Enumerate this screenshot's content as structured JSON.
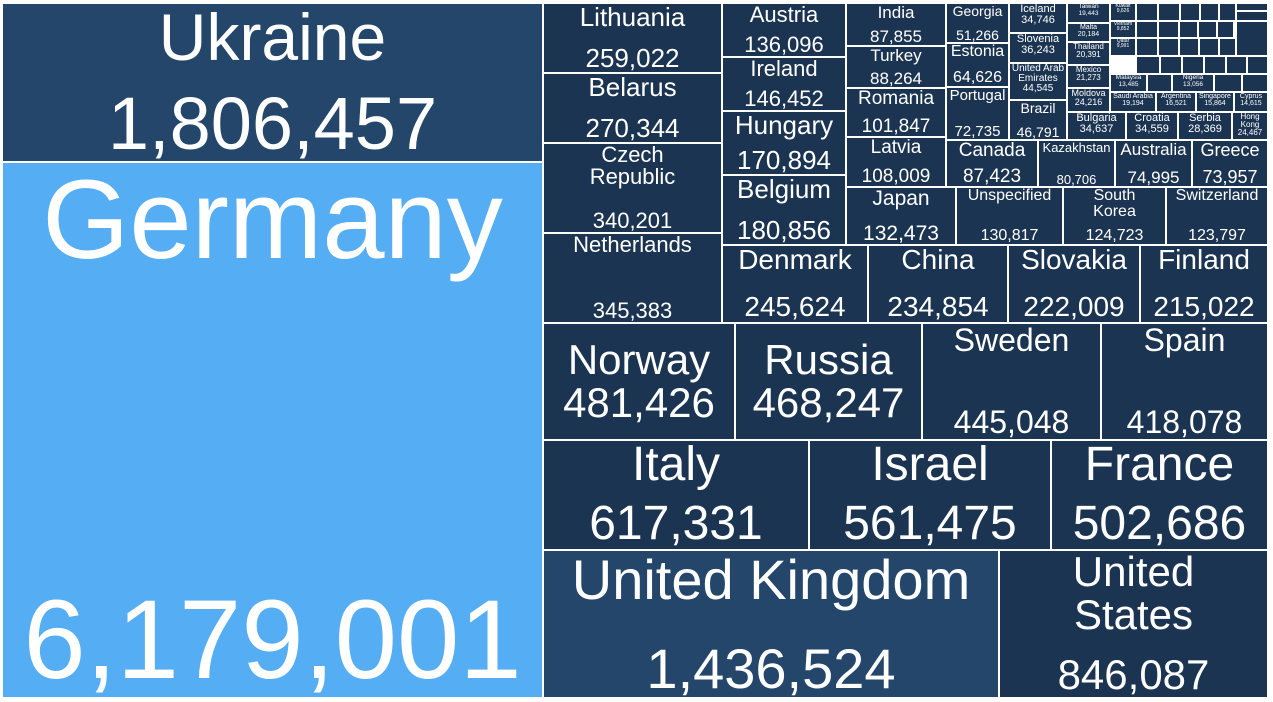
{
  "chart_data": {
    "type": "treemap",
    "colors": {
      "default": "#1b3451",
      "medium": "#24466a",
      "highlight": "#55adf4",
      "border": "#ffffff",
      "label": "#ffffff"
    },
    "items": [
      {
        "name": "Germany",
        "value": "6,179,001"
      },
      {
        "name": "Ukraine",
        "value": "1,806,457"
      },
      {
        "name": "United Kingdom",
        "value": "1,436,524"
      },
      {
        "name": "United States",
        "value": "846,087"
      },
      {
        "name": "Italy",
        "value": "617,331"
      },
      {
        "name": "Israel",
        "value": "561,475"
      },
      {
        "name": "France",
        "value": "502,686"
      },
      {
        "name": "Norway",
        "value": "481,426"
      },
      {
        "name": "Russia",
        "value": "468,247"
      },
      {
        "name": "Sweden",
        "value": "445,048"
      },
      {
        "name": "Spain",
        "value": "418,078"
      },
      {
        "name": "Netherlands",
        "value": "345,383"
      },
      {
        "name": "Czech Republic",
        "value": "340,201"
      },
      {
        "name": "Belarus",
        "value": "270,344"
      },
      {
        "name": "Lithuania",
        "value": "259,022"
      },
      {
        "name": "Denmark",
        "value": "245,624"
      },
      {
        "name": "China",
        "value": "234,854"
      },
      {
        "name": "Slovakia",
        "value": "222,009"
      },
      {
        "name": "Finland",
        "value": "215,022"
      },
      {
        "name": "Belgium",
        "value": "180,856"
      },
      {
        "name": "Hungary",
        "value": "170,894"
      },
      {
        "name": "Ireland",
        "value": "146,452"
      },
      {
        "name": "Austria",
        "value": "136,096"
      },
      {
        "name": "Japan",
        "value": "132,473"
      },
      {
        "name": "Unspecified",
        "value": "130,817"
      },
      {
        "name": "South Korea",
        "value": "124,723"
      },
      {
        "name": "Switzerland",
        "value": "123,797"
      },
      {
        "name": "Latvia",
        "value": "108,009"
      },
      {
        "name": "Romania",
        "value": "101,847"
      },
      {
        "name": "Turkey",
        "value": "88,264"
      },
      {
        "name": "India",
        "value": "87,855"
      },
      {
        "name": "Canada",
        "value": "87,423"
      },
      {
        "name": "Kazakhstan",
        "value": "80,706"
      },
      {
        "name": "Australia",
        "value": "74,995"
      },
      {
        "name": "Greece",
        "value": "73,957"
      },
      {
        "name": "Portugal",
        "value": "72,735"
      },
      {
        "name": "Estonia",
        "value": "64,626"
      },
      {
        "name": "Georgia",
        "value": "51,266"
      },
      {
        "name": "Brazil",
        "value": "46,791"
      },
      {
        "name": "United Arab Emirates",
        "value": "44,545"
      },
      {
        "name": "Slovenia",
        "value": "36,243"
      },
      {
        "name": "Iceland",
        "value": "34,746"
      },
      {
        "name": "Croatia",
        "value": "34,559"
      },
      {
        "name": "Bulgaria",
        "value": "34,637"
      },
      {
        "name": "Serbia",
        "value": "28,369"
      },
      {
        "name": "Hong Kong",
        "value": "24,467"
      },
      {
        "name": "Moldova",
        "value": "24,216"
      },
      {
        "name": "Mexico",
        "value": "21,273"
      },
      {
        "name": "Thailand",
        "value": "20,391"
      },
      {
        "name": "Malta",
        "value": "20,184"
      },
      {
        "name": "Taiwan",
        "value": "19,443"
      },
      {
        "name": "Saudi Arabia",
        "value": "19,194"
      },
      {
        "name": "Argentina",
        "value": "16,521"
      },
      {
        "name": "Singapore",
        "value": "15,864"
      },
      {
        "name": "Cyprus",
        "value": "14,615"
      },
      {
        "name": "Malaysia",
        "value": "13,485"
      },
      {
        "name": "Nigeria",
        "value": "13,056"
      },
      {
        "name": "Qatar",
        "value": "9,991"
      },
      {
        "name": "Vietnam",
        "value": "9,852"
      },
      {
        "name": "Kuwait",
        "value": "9,626"
      },
      {
        "name": "",
        "value": ""
      },
      {
        "name": "",
        "value": ""
      },
      {
        "name": "",
        "value": ""
      },
      {
        "name": "",
        "value": ""
      },
      {
        "name": "",
        "value": ""
      },
      {
        "name": "",
        "value": ""
      },
      {
        "name": "",
        "value": ""
      },
      {
        "name": "",
        "value": ""
      },
      {
        "name": "",
        "value": ""
      },
      {
        "name": "",
        "value": ""
      },
      {
        "name": "",
        "value": ""
      },
      {
        "name": "",
        "value": ""
      },
      {
        "name": "",
        "value": ""
      },
      {
        "name": "",
        "value": ""
      },
      {
        "name": "",
        "value": ""
      },
      {
        "name": "",
        "value": ""
      },
      {
        "name": "",
        "value": ""
      },
      {
        "name": "",
        "value": ""
      },
      {
        "name": "",
        "value": ""
      },
      {
        "name": "",
        "value": ""
      },
      {
        "name": "",
        "value": ""
      },
      {
        "name": "",
        "value": ""
      },
      {
        "name": "",
        "value": ""
      },
      {
        "name": "",
        "value": ""
      },
      {
        "name": "",
        "value": ""
      },
      {
        "name": "",
        "value": ""
      },
      {
        "name": "",
        "value": ""
      }
    ]
  }
}
